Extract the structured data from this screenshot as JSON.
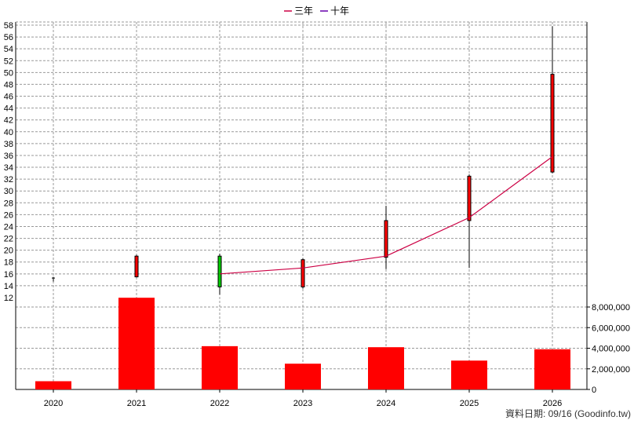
{
  "chart_data": {
    "type": "candlestick+bar",
    "categories": [
      "2020",
      "2021",
      "2022",
      "2023",
      "2024",
      "2025",
      "2026"
    ],
    "legend": [
      {
        "label": "三年",
        "color": "#cc0044"
      },
      {
        "label": "十年",
        "color": "#6600aa"
      }
    ],
    "price_axis": {
      "ylim": [
        12,
        58
      ],
      "ticks": [
        12,
        14,
        16,
        18,
        20,
        22,
        24,
        26,
        28,
        30,
        32,
        34,
        36,
        38,
        40,
        42,
        44,
        46,
        48,
        50,
        52,
        54,
        56,
        58
      ]
    },
    "volume_axis": {
      "ylim": [
        0,
        9000000
      ],
      "ticks": [
        0,
        2000000,
        4000000,
        6000000,
        8000000
      ],
      "tick_labels": [
        "0",
        "2,000,000",
        "4,000,000",
        "6,000,000",
        "8,000,000"
      ]
    },
    "candles": [
      {
        "year": "2020",
        "open": 15.3,
        "high": 15.5,
        "low": 14.7,
        "close": 15.0,
        "color": "#000000"
      },
      {
        "year": "2021",
        "open": 15.5,
        "high": 19.2,
        "low": 15.4,
        "close": 19.0,
        "color": "#ff0000"
      },
      {
        "year": "2022",
        "open": 19.0,
        "high": 19.4,
        "low": 12.5,
        "close": 13.8,
        "color": "#00cc00"
      },
      {
        "year": "2023",
        "open": 13.8,
        "high": 18.6,
        "low": 13.5,
        "close": 18.4,
        "color": "#ff0000"
      },
      {
        "year": "2024",
        "open": 18.8,
        "high": 27.5,
        "low": 16.8,
        "close": 25.0,
        "color": "#ff0000"
      },
      {
        "year": "2025",
        "open": 25.0,
        "high": 32.8,
        "low": 17.0,
        "close": 32.5,
        "color": "#ff0000"
      },
      {
        "year": "2026",
        "open": 33.2,
        "high": 57.8,
        "low": 33.0,
        "close": 49.7,
        "color": "#ff0000"
      }
    ],
    "series": [
      {
        "name": "三年",
        "color": "#cc0044",
        "points": [
          {
            "x": "2022",
            "y": 16.0
          },
          {
            "x": "2023",
            "y": 17.0
          },
          {
            "x": "2024",
            "y": 19.0
          },
          {
            "x": "2025",
            "y": 25.5
          },
          {
            "x": "2026",
            "y": 35.8
          }
        ]
      }
    ],
    "volume": [
      800000,
      8900000,
      4200000,
      2500000,
      4100000,
      2800000,
      3900000
    ],
    "volume_color": "#ff0000",
    "grid": true
  },
  "source_note": "資料日期: 09/16  (Goodinfo.tw)"
}
